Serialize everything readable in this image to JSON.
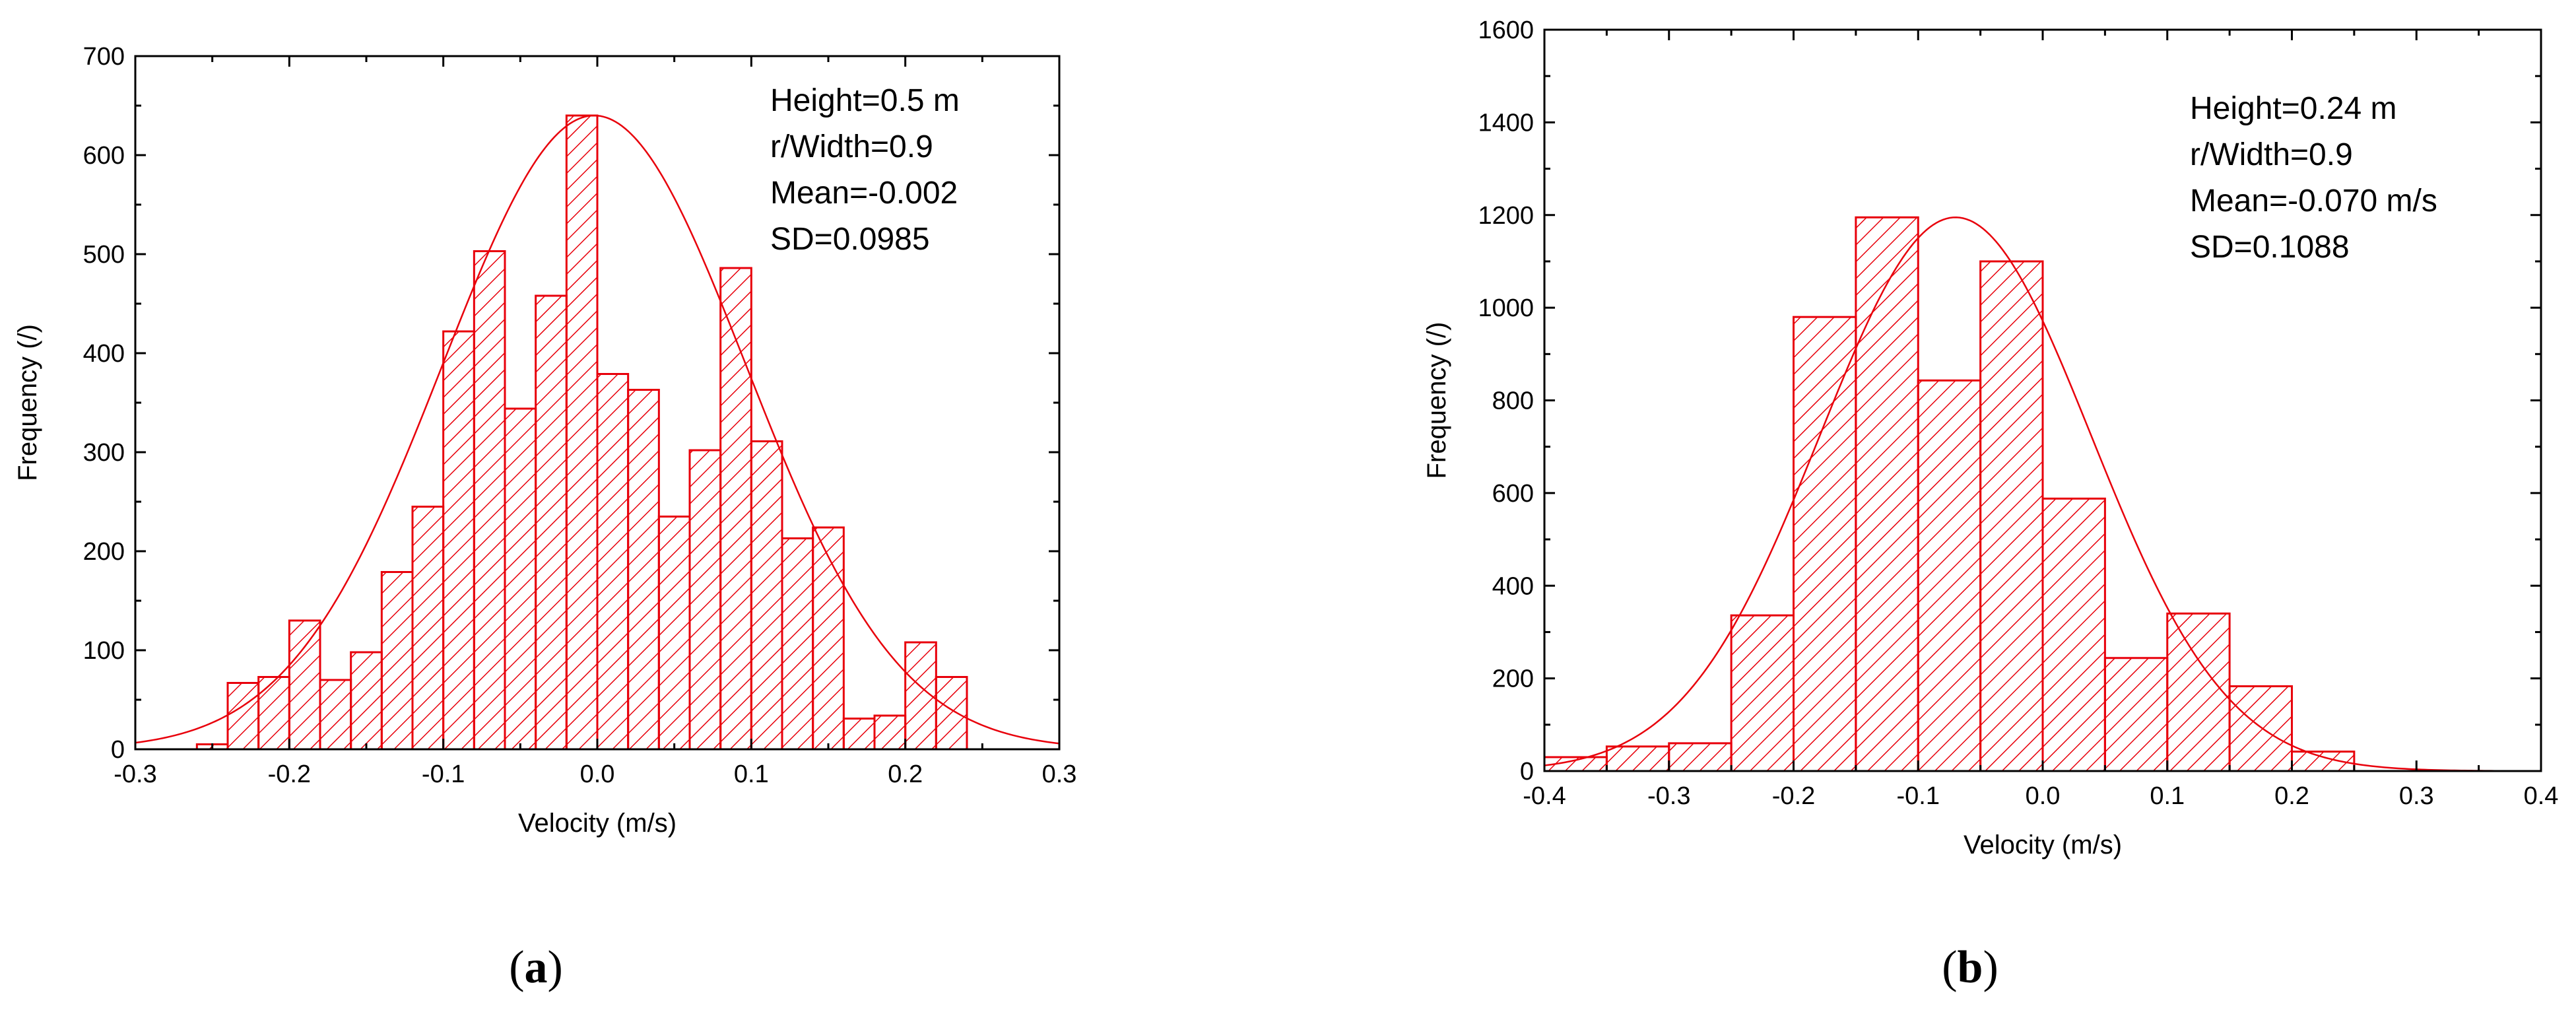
{
  "colors": {
    "bar": "#e8000b",
    "axis": "#000000",
    "background": "#ffffff"
  },
  "chart_data": [
    {
      "type": "bar",
      "panel": "a",
      "panel_label": "a",
      "xlabel": "Velocity (m/s)",
      "ylabel": "Frequency (/)",
      "xlim": [
        -0.3,
        0.3
      ],
      "ylim": [
        0,
        700
      ],
      "xticks": [
        -0.3,
        -0.2,
        -0.1,
        0.0,
        0.1,
        0.2,
        0.3
      ],
      "xtick_labels": [
        "-0.3",
        "-0.2",
        "-0.1",
        "0.0",
        "0.1",
        "0.2",
        "0.3"
      ],
      "yticks": [
        0,
        100,
        200,
        300,
        400,
        500,
        600,
        700
      ],
      "ytick_labels": [
        "0",
        "100",
        "200",
        "300",
        "400",
        "500",
        "600",
        "700"
      ],
      "bin_start": -0.26,
      "bin_width": 0.02,
      "values": [
        5,
        67,
        73,
        130,
        70,
        98,
        179,
        245,
        422,
        503,
        344,
        458,
        640,
        379,
        363,
        235,
        302,
        486,
        311,
        213,
        224,
        31,
        34,
        108,
        73
      ],
      "fit": {
        "type": "normal",
        "mean": -0.002,
        "sd": 0.0985,
        "peak": 640
      },
      "annotations": [
        "Height=0.5 m",
        "r/Width=0.9",
        "Mean=-0.002",
        "SD=0.0985"
      ]
    },
    {
      "type": "bar",
      "panel": "b",
      "panel_label": "b",
      "xlabel": "Velocity (m/s)",
      "ylabel": "Frequency (/)",
      "xlim": [
        -0.4,
        0.4
      ],
      "ylim": [
        0,
        1600
      ],
      "xticks": [
        -0.4,
        -0.3,
        -0.2,
        -0.1,
        0.0,
        0.1,
        0.2,
        0.3,
        0.4
      ],
      "xtick_labels": [
        "-0.4",
        "-0.3",
        "-0.2",
        "-0.1",
        "0.0",
        "0.1",
        "0.2",
        "0.3",
        "0.4"
      ],
      "yticks": [
        0,
        200,
        400,
        600,
        800,
        1000,
        1200,
        1400,
        1600
      ],
      "ytick_labels": [
        "0",
        "200",
        "400",
        "600",
        "800",
        "1000",
        "1200",
        "1400",
        "1600"
      ],
      "bin_start": -0.4,
      "bin_width": 0.05,
      "values": [
        30,
        53,
        60,
        336,
        980,
        1195,
        843,
        1100,
        588,
        244,
        340,
        183,
        42
      ],
      "fit": {
        "type": "normal",
        "mean": -0.07,
        "sd": 0.1088,
        "peak": 1195
      },
      "annotations": [
        "Height=0.24 m",
        "r/Width=0.9",
        "Mean=-0.070 m/s",
        "SD=0.1088"
      ]
    }
  ]
}
